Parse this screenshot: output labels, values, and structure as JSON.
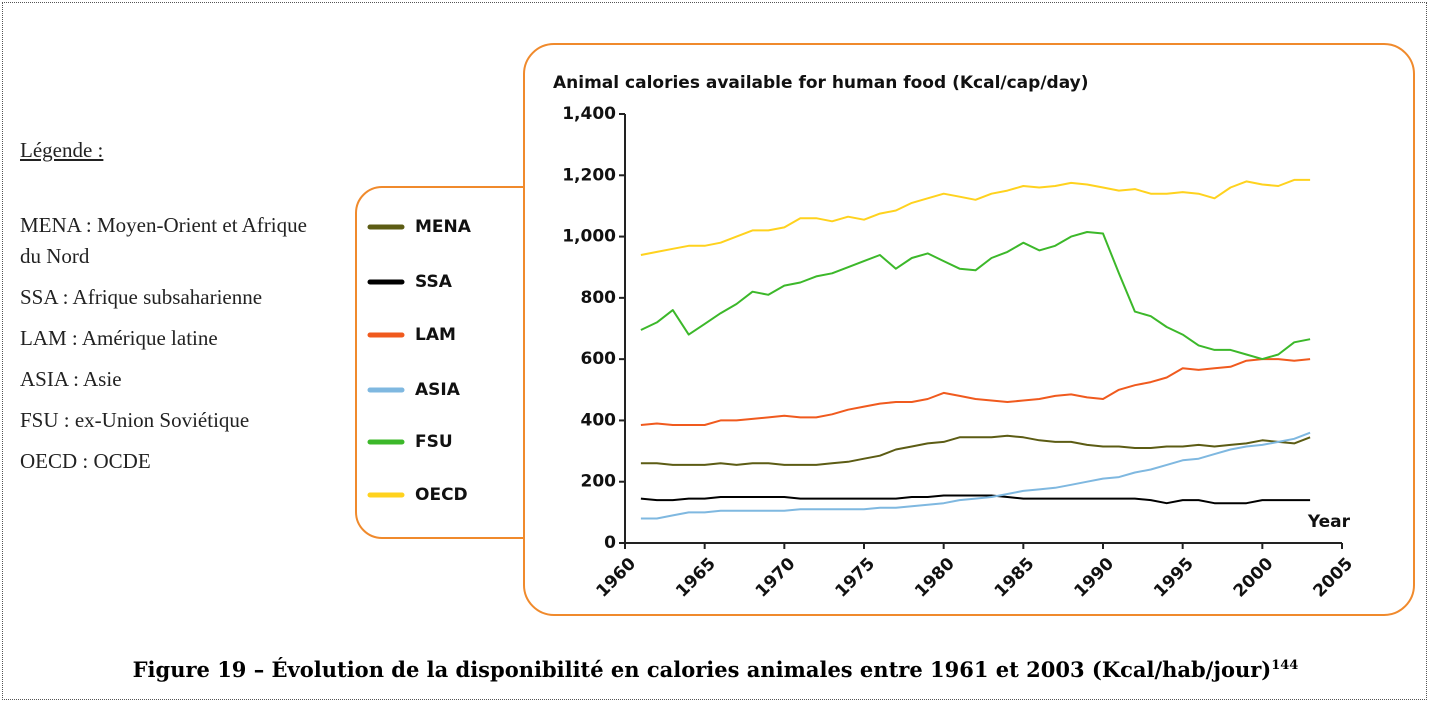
{
  "notes": {
    "title": "Légende :",
    "items": [
      "MENA : Moyen-Orient et Afrique du Nord",
      "SSA : Afrique subsaharienne",
      "LAM : Amérique latine",
      "ASIA : Asie",
      "FSU : ex-Union Soviétique",
      "OECD : OCDE"
    ]
  },
  "caption": {
    "text": "Figure 19 – Évolution de la disponibilité en calories animales entre 1961 et 2003 (Kcal/hab/jour)",
    "footnote": "144"
  },
  "chart_data": {
    "type": "line",
    "title": "Animal calories available for human food (Kcal/cap/day)",
    "x_label": "Year",
    "x": [
      1961,
      1962,
      1963,
      1964,
      1965,
      1966,
      1967,
      1968,
      1969,
      1970,
      1971,
      1972,
      1973,
      1974,
      1975,
      1976,
      1977,
      1978,
      1979,
      1980,
      1981,
      1982,
      1983,
      1984,
      1985,
      1986,
      1987,
      1988,
      1989,
      1990,
      1991,
      1992,
      1993,
      1994,
      1995,
      1996,
      1997,
      1998,
      1999,
      2000,
      2001,
      2002,
      2003
    ],
    "xlim": [
      1960,
      2005
    ],
    "xticks": [
      1960,
      1965,
      1970,
      1975,
      1980,
      1985,
      1990,
      1995,
      2000,
      2005
    ],
    "ylim": [
      0,
      1400
    ],
    "yticks": [
      0,
      200,
      400,
      600,
      800,
      {
        "value": 1000,
        "label": "1,000"
      },
      {
        "value": 1200,
        "label": "1,200"
      },
      {
        "value": 1400,
        "label": "1,400"
      }
    ],
    "grid": false,
    "legend": "left",
    "series": [
      {
        "name": "MENA",
        "color": "#5c5c14",
        "values": [
          260,
          260,
          255,
          255,
          255,
          260,
          255,
          260,
          260,
          255,
          255,
          255,
          260,
          265,
          275,
          285,
          305,
          315,
          325,
          330,
          345,
          345,
          345,
          350,
          345,
          335,
          330,
          330,
          320,
          315,
          315,
          310,
          310,
          315,
          315,
          320,
          315,
          320,
          325,
          335,
          330,
          325,
          345
        ]
      },
      {
        "name": "SSA",
        "color": "#000000",
        "values": [
          145,
          140,
          140,
          145,
          145,
          150,
          150,
          150,
          150,
          150,
          145,
          145,
          145,
          145,
          145,
          145,
          145,
          150,
          150,
          155,
          155,
          155,
          155,
          150,
          145,
          145,
          145,
          145,
          145,
          145,
          145,
          145,
          140,
          130,
          140,
          140,
          130,
          130,
          130,
          140,
          140,
          140,
          140
        ]
      },
      {
        "name": "LAM",
        "color": "#f05a1e",
        "values": [
          385,
          390,
          385,
          385,
          385,
          400,
          400,
          405,
          410,
          415,
          410,
          410,
          420,
          435,
          445,
          455,
          460,
          460,
          470,
          490,
          480,
          470,
          465,
          460,
          465,
          470,
          480,
          485,
          475,
          470,
          500,
          515,
          525,
          540,
          570,
          565,
          570,
          575,
          595,
          600,
          600,
          595,
          600
        ]
      },
      {
        "name": "ASIA",
        "color": "#7fb8e0",
        "values": [
          80,
          80,
          90,
          100,
          100,
          105,
          105,
          105,
          105,
          105,
          110,
          110,
          110,
          110,
          110,
          115,
          115,
          120,
          125,
          130,
          140,
          145,
          150,
          160,
          170,
          175,
          180,
          190,
          200,
          210,
          215,
          230,
          240,
          255,
          270,
          275,
          290,
          305,
          315,
          320,
          330,
          340,
          360
        ]
      },
      {
        "name": "FSU",
        "color": "#3cb82a",
        "values": [
          695,
          720,
          760,
          680,
          715,
          750,
          780,
          820,
          810,
          840,
          850,
          870,
          880,
          900,
          920,
          940,
          895,
          930,
          945,
          920,
          895,
          890,
          930,
          950,
          980,
          955,
          970,
          1000,
          1015,
          1010,
          880,
          755,
          740,
          705,
          680,
          645,
          630,
          630,
          615,
          600,
          615,
          655,
          665
        ]
      },
      {
        "name": "OECD",
        "color": "#ffd21e",
        "values": [
          940,
          950,
          960,
          970,
          970,
          980,
          1000,
          1020,
          1020,
          1030,
          1060,
          1060,
          1050,
          1065,
          1055,
          1075,
          1085,
          1110,
          1125,
          1140,
          1130,
          1120,
          1140,
          1150,
          1165,
          1160,
          1165,
          1175,
          1170,
          1160,
          1150,
          1155,
          1140,
          1140,
          1145,
          1140,
          1125,
          1160,
          1180,
          1170,
          1165,
          1185,
          1185
        ]
      }
    ]
  }
}
